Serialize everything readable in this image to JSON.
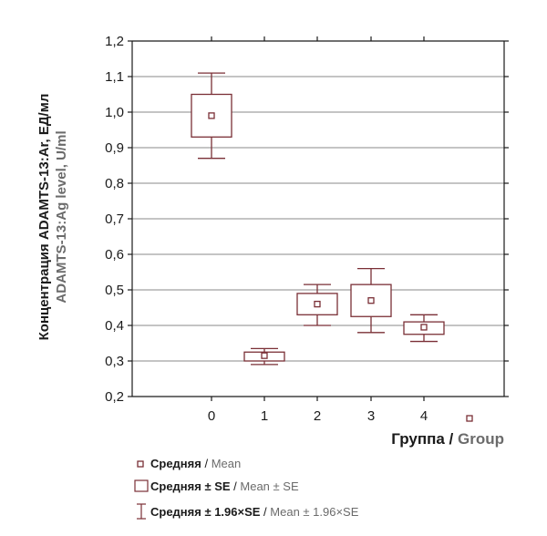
{
  "colors": {
    "box": "#7a2f36",
    "grid": "#8a8a8a",
    "axis": "#1a1a1a"
  },
  "chart_data": {
    "type": "boxplot",
    "y_axis": {
      "label_ru": "Концентрация ADAMTS-13:Ar, ЕД/мл",
      "label_en": "ADAMTS-13:Ag level, U/ml",
      "ylim": [
        0.2,
        1.2
      ],
      "ticks": [
        "0,2",
        "0,3",
        "0,4",
        "0,5",
        "0,6",
        "0,7",
        "0,8",
        "0,9",
        "1,0",
        "1,1",
        "1,2"
      ],
      "grid": true
    },
    "x_axis": {
      "label_ru": "Группа",
      "label_sep": " / ",
      "label_en": "Group",
      "ticks": [
        "0",
        "1",
        "2",
        "3",
        "4"
      ]
    },
    "groups": [
      {
        "x": "0",
        "mean": 0.99,
        "se_low": 0.93,
        "se_high": 1.05,
        "ci_low": 0.87,
        "ci_high": 1.11
      },
      {
        "x": "1",
        "mean": 0.315,
        "se_low": 0.3,
        "se_high": 0.325,
        "ci_low": 0.29,
        "ci_high": 0.335
      },
      {
        "x": "2",
        "mean": 0.46,
        "se_low": 0.43,
        "se_high": 0.49,
        "ci_low": 0.4,
        "ci_high": 0.515
      },
      {
        "x": "3",
        "mean": 0.47,
        "se_low": 0.425,
        "se_high": 0.515,
        "ci_low": 0.38,
        "ci_high": 0.56
      },
      {
        "x": "4",
        "mean": 0.395,
        "se_low": 0.375,
        "se_high": 0.41,
        "ci_low": 0.355,
        "ci_high": 0.43
      }
    ],
    "legend": [
      {
        "key": "mean",
        "ru": "Средняя",
        "sep": " / ",
        "en": "Mean"
      },
      {
        "key": "se",
        "ru": "Средняя ± SE",
        "sep": " / ",
        "en": "Mean ± SE"
      },
      {
        "key": "ci",
        "ru": "Средняя ± 1.96×SE",
        "sep": " / ",
        "en": "Mean ± 1.96×SE"
      }
    ]
  }
}
